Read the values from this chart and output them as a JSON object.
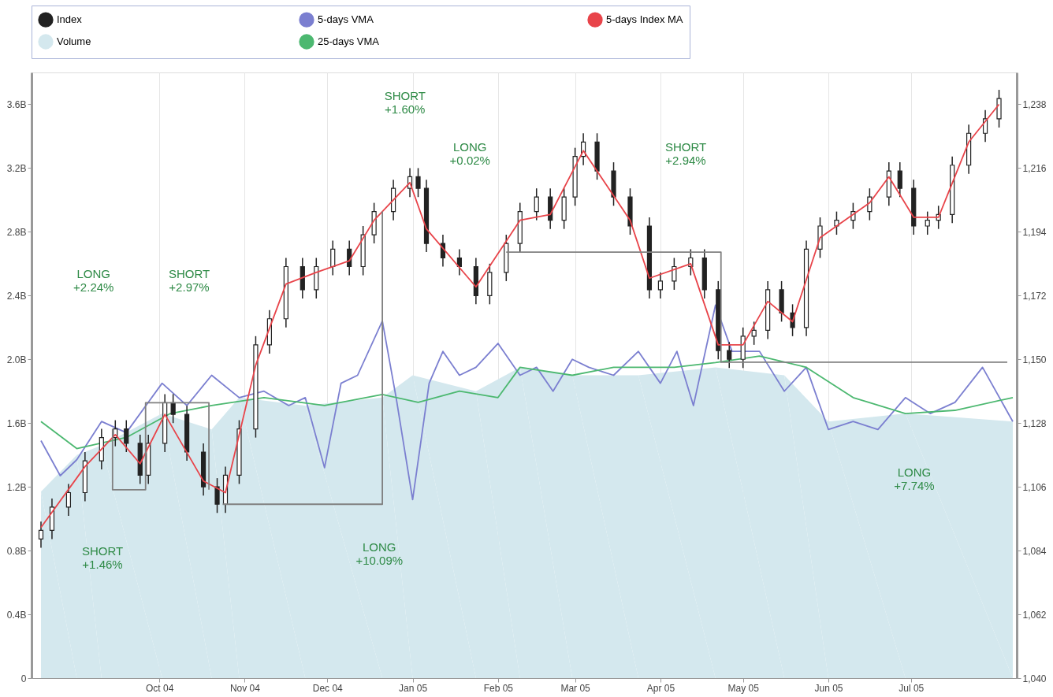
{
  "chart_data": {
    "type": "candlestick",
    "xlim": [
      "2004-08-17",
      "2005-08-07"
    ],
    "xticks": [
      {
        "value": "2004-10-01",
        "label": "Oct 04"
      },
      {
        "value": "2004-11-01",
        "label": "Nov 04"
      },
      {
        "value": "2004-12-01",
        "label": "Dec 04"
      },
      {
        "value": "2005-01-01",
        "label": "Jan 05"
      },
      {
        "value": "2005-02-01",
        "label": "Feb 05"
      },
      {
        "value": "2005-03-01",
        "label": "Mar 05"
      },
      {
        "value": "2005-04-01",
        "label": "Apr 05"
      },
      {
        "value": "2005-05-01",
        "label": "May 05"
      },
      {
        "value": "2005-06-01",
        "label": "Jun 05"
      },
      {
        "value": "2005-07-01",
        "label": "Jul 05"
      }
    ],
    "ylim": [
      0,
      3.8
    ],
    "yticks": [
      0,
      {
        "value": 0.4,
        "label": "0.4B"
      },
      {
        "value": 0.8,
        "label": "0.8B"
      },
      {
        "value": 1.2,
        "label": "1.2B"
      },
      {
        "value": 1.6,
        "label": "1.6B"
      },
      {
        "value": 2.0,
        "label": "2.0B"
      },
      {
        "value": 2.4,
        "label": "2.4B"
      },
      {
        "value": 2.8,
        "label": "2.8B"
      },
      {
        "value": 3.2,
        "label": "3.2B"
      },
      {
        "value": 3.6,
        "label": "3.6B"
      }
    ],
    "y2lim": [
      1040,
      1249
    ],
    "y2ticks": [
      {
        "value": 1040,
        "label": "1,040"
      },
      {
        "value": 1062,
        "label": "1,062"
      },
      {
        "value": 1084,
        "label": "1,084"
      },
      {
        "value": 1106,
        "label": "1,106"
      },
      {
        "value": 1128,
        "label": "1,128"
      },
      {
        "value": 1150,
        "label": "1,150"
      },
      {
        "value": 1172,
        "label": "1,172"
      },
      {
        "value": 1194,
        "label": "1,194"
      },
      {
        "value": 1216,
        "label": "1,216"
      },
      {
        "value": 1238,
        "label": "1,238"
      }
    ],
    "grid": "x",
    "legend": "top",
    "series": [
      {
        "name": "Index",
        "type": "candlestick",
        "axis": "y2",
        "color": "#222222",
        "x": [
          "2004-08-19",
          "2004-08-23",
          "2004-08-29",
          "2004-09-04",
          "2004-09-10",
          "2004-09-15",
          "2004-09-19",
          "2004-09-24",
          "2004-09-27",
          "2004-10-03",
          "2004-10-06",
          "2004-10-11",
          "2004-10-17",
          "2004-10-22",
          "2004-10-25",
          "2004-10-30",
          "2004-11-05",
          "2004-11-10",
          "2004-11-16",
          "2004-11-22",
          "2004-11-27",
          "2004-12-03",
          "2004-12-09",
          "2004-12-14",
          "2004-12-18",
          "2004-12-25",
          "2004-12-31",
          "2005-01-03",
          "2005-01-06",
          "2005-01-12",
          "2005-01-18",
          "2005-01-24",
          "2005-01-29",
          "2005-02-04",
          "2005-02-09",
          "2005-02-15",
          "2005-02-20",
          "2005-02-25",
          "2005-03-01",
          "2005-03-04",
          "2005-03-09",
          "2005-03-15",
          "2005-03-21",
          "2005-03-28",
          "2005-04-01",
          "2005-04-06",
          "2005-04-12",
          "2005-04-17",
          "2005-04-22",
          "2005-04-26",
          "2005-05-01",
          "2005-05-05",
          "2005-05-10",
          "2005-05-15",
          "2005-05-19",
          "2005-05-24",
          "2005-05-29",
          "2005-06-04",
          "2005-06-10",
          "2005-06-16",
          "2005-06-23",
          "2005-06-27",
          "2005-07-02",
          "2005-07-07",
          "2005-07-11",
          "2005-07-16",
          "2005-07-22",
          "2005-07-28",
          "2005-08-02"
        ],
        "ohlc": [
          [
            1088,
            1094,
            1085,
            1091
          ],
          [
            1091,
            1102,
            1088,
            1099
          ],
          [
            1099,
            1107,
            1096,
            1104
          ],
          [
            1104,
            1118,
            1101,
            1115
          ],
          [
            1115,
            1126,
            1112,
            1123
          ],
          [
            1123,
            1129,
            1120,
            1126
          ],
          [
            1126,
            1129,
            1118,
            1121
          ],
          [
            1121,
            1124,
            1107,
            1110
          ],
          [
            1110,
            1124,
            1107,
            1121
          ],
          [
            1121,
            1138,
            1118,
            1135
          ],
          [
            1135,
            1138,
            1128,
            1131
          ],
          [
            1131,
            1134,
            1115,
            1118
          ],
          [
            1118,
            1121,
            1103,
            1106
          ],
          [
            1106,
            1109,
            1097,
            1100
          ],
          [
            1100,
            1113,
            1097,
            1110
          ],
          [
            1110,
            1129,
            1107,
            1126
          ],
          [
            1126,
            1158,
            1123,
            1155
          ],
          [
            1155,
            1167,
            1152,
            1164
          ],
          [
            1164,
            1185,
            1161,
            1182
          ],
          [
            1182,
            1185,
            1171,
            1174
          ],
          [
            1174,
            1185,
            1171,
            1182
          ],
          [
            1182,
            1191,
            1179,
            1188
          ],
          [
            1188,
            1191,
            1179,
            1182
          ],
          [
            1182,
            1196,
            1179,
            1193
          ],
          [
            1193,
            1204,
            1190,
            1201
          ],
          [
            1201,
            1212,
            1198,
            1209
          ],
          [
            1209,
            1216,
            1206,
            1213
          ],
          [
            1213,
            1216,
            1206,
            1209
          ],
          [
            1209,
            1212,
            1187,
            1190
          ],
          [
            1190,
            1193,
            1182,
            1185
          ],
          [
            1185,
            1188,
            1179,
            1182
          ],
          [
            1182,
            1185,
            1169,
            1172
          ],
          [
            1172,
            1183,
            1169,
            1180
          ],
          [
            1180,
            1193,
            1177,
            1190
          ],
          [
            1190,
            1204,
            1187,
            1201
          ],
          [
            1201,
            1209,
            1198,
            1206
          ],
          [
            1206,
            1209,
            1195,
            1198
          ],
          [
            1198,
            1209,
            1195,
            1206
          ],
          [
            1206,
            1223,
            1203,
            1220
          ],
          [
            1220,
            1228,
            1217,
            1225
          ],
          [
            1225,
            1228,
            1212,
            1215
          ],
          [
            1215,
            1218,
            1203,
            1206
          ],
          [
            1206,
            1209,
            1193,
            1196
          ],
          [
            1196,
            1199,
            1171,
            1174
          ],
          [
            1174,
            1180,
            1171,
            1177
          ],
          [
            1177,
            1185,
            1174,
            1182
          ],
          [
            1182,
            1188,
            1179,
            1185
          ],
          [
            1185,
            1188,
            1171,
            1174
          ],
          [
            1174,
            1177,
            1150,
            1153
          ],
          [
            1153,
            1156,
            1147,
            1150
          ],
          [
            1150,
            1161,
            1147,
            1158
          ],
          [
            1158,
            1163,
            1155,
            1160
          ],
          [
            1160,
            1177,
            1157,
            1174
          ],
          [
            1174,
            1177,
            1163,
            1166
          ],
          [
            1166,
            1169,
            1158,
            1161
          ],
          [
            1161,
            1191,
            1158,
            1188
          ],
          [
            1188,
            1199,
            1185,
            1196
          ],
          [
            1196,
            1201,
            1193,
            1198
          ],
          [
            1198,
            1204,
            1195,
            1201
          ],
          [
            1201,
            1209,
            1198,
            1206
          ],
          [
            1206,
            1218,
            1203,
            1215
          ],
          [
            1215,
            1218,
            1206,
            1209
          ],
          [
            1209,
            1212,
            1193,
            1196
          ],
          [
            1196,
            1201,
            1193,
            1198
          ],
          [
            1198,
            1203,
            1195,
            1200
          ],
          [
            1200,
            1220,
            1197,
            1217
          ],
          [
            1217,
            1231,
            1214,
            1228
          ],
          [
            1228,
            1236,
            1225,
            1233
          ],
          [
            1233,
            1243,
            1230,
            1240
          ]
        ]
      },
      {
        "name": "5-days VMA",
        "type": "line",
        "axis": "y",
        "color": "#7b7fd0",
        "x": [
          "2004-08-19",
          "2004-08-26",
          "2004-09-01",
          "2004-09-10",
          "2004-09-19",
          "2004-10-02",
          "2004-10-11",
          "2004-10-20",
          "2004-10-30",
          "2004-11-08",
          "2004-11-17",
          "2004-11-23",
          "2004-11-30",
          "2004-12-06",
          "2004-12-12",
          "2004-12-21",
          "2004-12-26",
          "2005-01-01",
          "2005-01-07",
          "2005-01-12",
          "2005-01-18",
          "2005-01-24",
          "2005-02-01",
          "2005-02-09",
          "2005-02-15",
          "2005-02-21",
          "2005-02-28",
          "2005-03-06",
          "2005-03-15",
          "2005-03-24",
          "2005-04-01",
          "2005-04-07",
          "2005-04-13",
          "2005-04-21",
          "2005-04-27",
          "2005-05-07",
          "2005-05-16",
          "2005-05-24",
          "2005-06-01",
          "2005-06-10",
          "2005-06-19",
          "2005-06-29",
          "2005-07-08",
          "2005-07-17",
          "2005-07-27",
          "2005-08-07"
        ],
        "values": [
          1.49,
          1.27,
          1.37,
          1.61,
          1.54,
          1.85,
          1.71,
          1.9,
          1.76,
          1.8,
          1.71,
          1.76,
          1.32,
          1.85,
          1.9,
          2.24,
          1.76,
          1.12,
          1.85,
          2.05,
          1.9,
          1.95,
          2.1,
          1.9,
          1.95,
          1.8,
          2.0,
          1.95,
          1.9,
          2.05,
          1.85,
          2.05,
          1.71,
          2.34,
          2.05,
          2.05,
          1.8,
          1.95,
          1.56,
          1.61,
          1.56,
          1.76,
          1.66,
          1.73,
          1.95,
          1.61
        ]
      },
      {
        "name": "5-days Index MA",
        "type": "line",
        "axis": "y2",
        "color": "#e8444a",
        "x": [
          "2004-08-19",
          "2004-09-04",
          "2004-09-15",
          "2004-09-24",
          "2004-10-03",
          "2004-10-17",
          "2004-10-25",
          "2004-11-05",
          "2004-11-16",
          "2004-11-27",
          "2004-12-09",
          "2004-12-18",
          "2004-12-31",
          "2005-01-06",
          "2005-01-24",
          "2005-02-09",
          "2005-02-20",
          "2005-03-04",
          "2005-03-21",
          "2005-03-28",
          "2005-04-12",
          "2005-04-22",
          "2005-05-01",
          "2005-05-10",
          "2005-05-19",
          "2005-05-29",
          "2005-06-16",
          "2005-06-23",
          "2005-07-02",
          "2005-07-11",
          "2005-07-22",
          "2005-08-02"
        ],
        "values": [
          1092,
          1113,
          1124,
          1114,
          1131,
          1108,
          1104,
          1148,
          1176,
          1180,
          1184,
          1198,
          1211,
          1195,
          1175,
          1198,
          1200,
          1222,
          1198,
          1178,
          1183,
          1155,
          1155,
          1170,
          1163,
          1192,
          1204,
          1213,
          1199,
          1199,
          1225,
          1238
        ]
      },
      {
        "name": "Volume",
        "type": "area",
        "axis": "y",
        "color": "#d4e8ee",
        "x": [
          "2004-08-19",
          "2004-09-01",
          "2004-09-10",
          "2004-10-02",
          "2004-10-20",
          "2004-10-30",
          "2004-11-23",
          "2004-12-21",
          "2005-01-01",
          "2005-01-24",
          "2005-02-09",
          "2005-02-28",
          "2005-03-24",
          "2005-04-21",
          "2005-05-16",
          "2005-06-01",
          "2005-06-29",
          "2005-08-07"
        ],
        "values": [
          1.17,
          1.4,
          1.46,
          1.66,
          1.56,
          1.76,
          1.71,
          1.76,
          1.9,
          1.8,
          1.95,
          1.9,
          1.9,
          1.95,
          1.9,
          1.61,
          1.66,
          1.61
        ]
      },
      {
        "name": "25-days VMA",
        "type": "line",
        "axis": "y",
        "color": "#4cb870",
        "x": [
          "2004-08-19",
          "2004-09-01",
          "2004-09-19",
          "2004-10-05",
          "2004-10-20",
          "2004-11-08",
          "2004-11-30",
          "2004-12-21",
          "2005-01-03",
          "2005-01-18",
          "2005-02-01",
          "2005-02-09",
          "2005-02-28",
          "2005-03-15",
          "2005-04-06",
          "2005-04-21",
          "2005-05-07",
          "2005-05-24",
          "2005-06-10",
          "2005-06-29",
          "2005-07-17",
          "2005-08-07"
        ],
        "values": [
          1.61,
          1.44,
          1.51,
          1.66,
          1.71,
          1.76,
          1.71,
          1.78,
          1.73,
          1.8,
          1.76,
          1.95,
          1.9,
          1.95,
          1.95,
          1.98,
          2.02,
          1.95,
          1.76,
          1.66,
          1.68,
          1.76
        ]
      },
      {
        "type": "line",
        "axis": "y2",
        "color": "#808080",
        "x": [
          "2004-09-14",
          "2004-09-14",
          "2004-09-26",
          "2004-09-26",
          "2004-10-19",
          "2004-10-19",
          null,
          "2004-10-24",
          "2004-12-21",
          "2004-12-21",
          null,
          "2005-02-04",
          "2005-04-23",
          "2005-04-23",
          "2005-08-05"
        ],
        "values": [
          1126,
          1105,
          1105,
          1135,
          1135,
          1105,
          null,
          1100,
          1100,
          1201,
          null,
          1187,
          1187,
          1149,
          1149
        ]
      }
    ],
    "annotations": [
      "LONG\n+2.24%",
      "SHORT\n+2.97%",
      "SHORT\n+1.46%",
      "LONG\n+10.09%",
      "SHORT\n+1.60%",
      "LONG\n+0.02%",
      "SHORT\n+2.94%",
      "LONG\n+7.74%"
    ]
  }
}
